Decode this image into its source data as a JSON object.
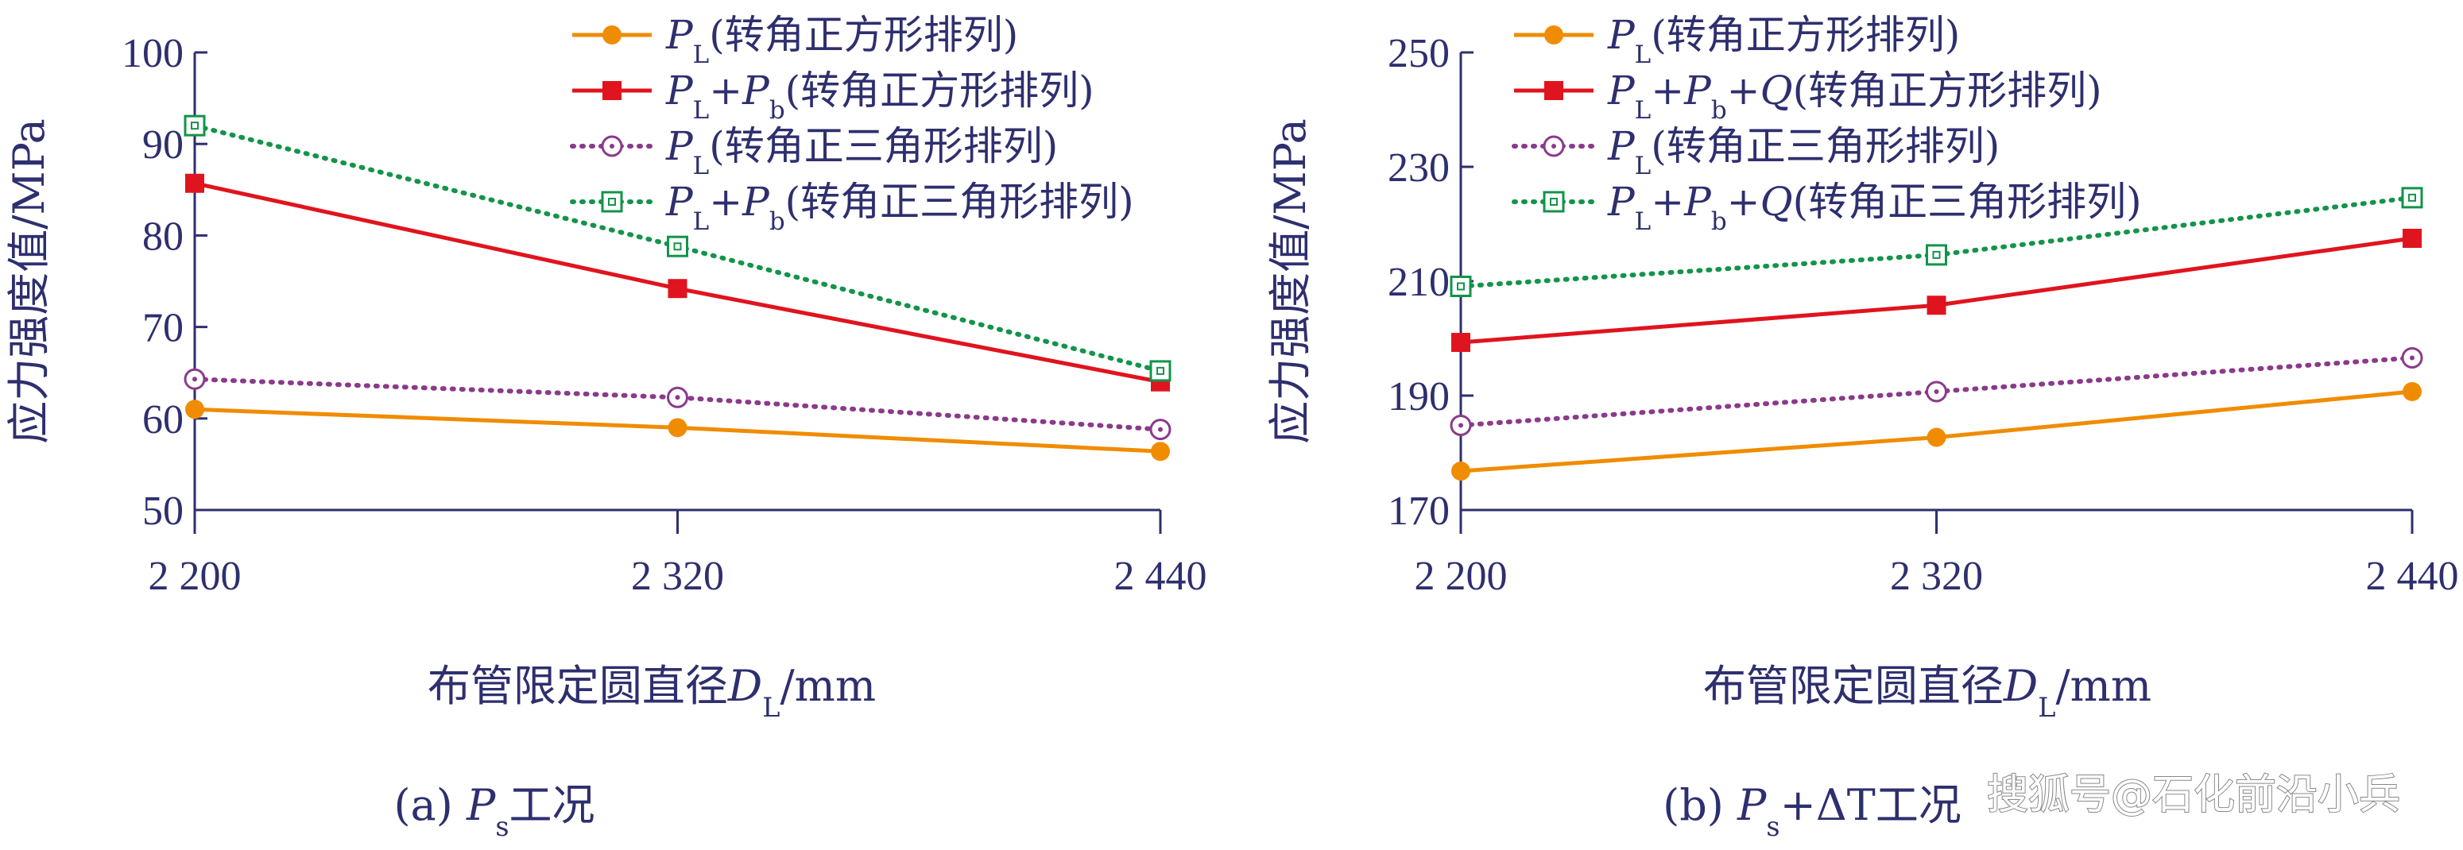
{
  "chart_data": [
    {
      "type": "line",
      "panel_label": "(a) ",
      "caption_p": "P",
      "caption_sub": "s",
      "caption_rest": "工况",
      "ylabel": "应力强度值/MPa",
      "xlabel_main": "布管限定圆直径",
      "xlabel_D": "D",
      "xlabel_sub": "L",
      "xlabel_unit": "/mm",
      "x": [
        2200,
        2320,
        2440
      ],
      "x_tick_labels": [
        "2 200",
        "2 320",
        "2 440"
      ],
      "ylim": [
        50,
        100
      ],
      "y_ticks": [
        50,
        60,
        70,
        80,
        90,
        100
      ],
      "y_tick_labels": [
        "50",
        "60",
        "70",
        "80",
        "90",
        "100"
      ],
      "legend_position": "top-right",
      "series": [
        {
          "values": [
            61,
            59,
            56.4
          ],
          "color": "#f08c00",
          "marker": "filled-circle",
          "line": "solid",
          "legend": [
            {
              "t": "P",
              "i": 1
            },
            {
              "t": "L",
              "s": 1
            },
            {
              "t": "(转角正方形排列)"
            }
          ]
        },
        {
          "values": [
            85.7,
            74.2,
            64
          ],
          "color": "#e0141e",
          "marker": "filled-square",
          "line": "solid",
          "legend": [
            {
              "t": "P",
              "i": 1
            },
            {
              "t": "L",
              "s": 1
            },
            {
              "t": "+"
            },
            {
              "t": "P",
              "i": 1
            },
            {
              "t": "b",
              "s": 1
            },
            {
              "t": "(转角正方形排列)"
            }
          ]
        },
        {
          "values": [
            64.3,
            62.3,
            58.8
          ],
          "color": "#8b3a8b",
          "marker": "open-circle",
          "line": "dotted",
          "legend": [
            {
              "t": "P",
              "i": 1
            },
            {
              "t": "L",
              "s": 1
            },
            {
              "t": "(转角正三角形排列)"
            }
          ]
        },
        {
          "values": [
            92,
            78.8,
            65.2
          ],
          "color": "#13944a",
          "marker": "open-square",
          "line": "dotted",
          "legend": [
            {
              "t": "P",
              "i": 1
            },
            {
              "t": "L",
              "s": 1
            },
            {
              "t": "+"
            },
            {
              "t": "P",
              "i": 1
            },
            {
              "t": "b",
              "s": 1
            },
            {
              "t": "(转角正三角形排列)"
            }
          ]
        }
      ]
    },
    {
      "type": "line",
      "panel_label": "(b) ",
      "caption_p": "P",
      "caption_sub": "s",
      "caption_rest": "+ΔT工况",
      "ylabel": "应力强度值/MPa",
      "xlabel_main": "布管限定圆直径",
      "xlabel_D": "D",
      "xlabel_sub": "L",
      "xlabel_unit": "/mm",
      "x": [
        2200,
        2320,
        2440
      ],
      "x_tick_labels": [
        "2 200",
        "2 320",
        "2 440"
      ],
      "ylim": [
        170,
        250
      ],
      "y_ticks": [
        170,
        190,
        210,
        230,
        250
      ],
      "y_tick_labels": [
        "170",
        "190",
        "210",
        "230",
        "250"
      ],
      "legend_position": "top-left",
      "series": [
        {
          "values": [
            176.8,
            182.7,
            190.7
          ],
          "color": "#f08c00",
          "marker": "filled-circle",
          "line": "solid",
          "legend": [
            {
              "t": "P",
              "i": 1
            },
            {
              "t": "L",
              "s": 1
            },
            {
              "t": "(转角正方形排列)"
            }
          ]
        },
        {
          "values": [
            199.3,
            205.8,
            217.5
          ],
          "color": "#e0141e",
          "marker": "filled-square",
          "line": "solid",
          "legend": [
            {
              "t": "P",
              "i": 1
            },
            {
              "t": "L",
              "s": 1
            },
            {
              "t": "+"
            },
            {
              "t": "P",
              "i": 1
            },
            {
              "t": "b",
              "s": 1
            },
            {
              "t": "+"
            },
            {
              "t": "Q",
              "i": 1
            },
            {
              "t": "(转角正方形排列)"
            }
          ]
        },
        {
          "values": [
            184.8,
            190.7,
            196.6
          ],
          "color": "#8b3a8b",
          "marker": "open-circle",
          "line": "dotted",
          "legend": [
            {
              "t": "P",
              "i": 1
            },
            {
              "t": "L",
              "s": 1
            },
            {
              "t": "(转角正三角形排列)"
            }
          ]
        },
        {
          "values": [
            209.1,
            214.6,
            224.6
          ],
          "color": "#13944a",
          "marker": "open-square",
          "line": "dotted",
          "legend": [
            {
              "t": "P",
              "i": 1
            },
            {
              "t": "L",
              "s": 1
            },
            {
              "t": "+"
            },
            {
              "t": "P",
              "i": 1
            },
            {
              "t": "b",
              "s": 1
            },
            {
              "t": "+"
            },
            {
              "t": "Q",
              "i": 1
            },
            {
              "t": "(转角正三角形排列)"
            }
          ]
        }
      ]
    }
  ],
  "watermark": "搜狐号@石化前沿小兵"
}
